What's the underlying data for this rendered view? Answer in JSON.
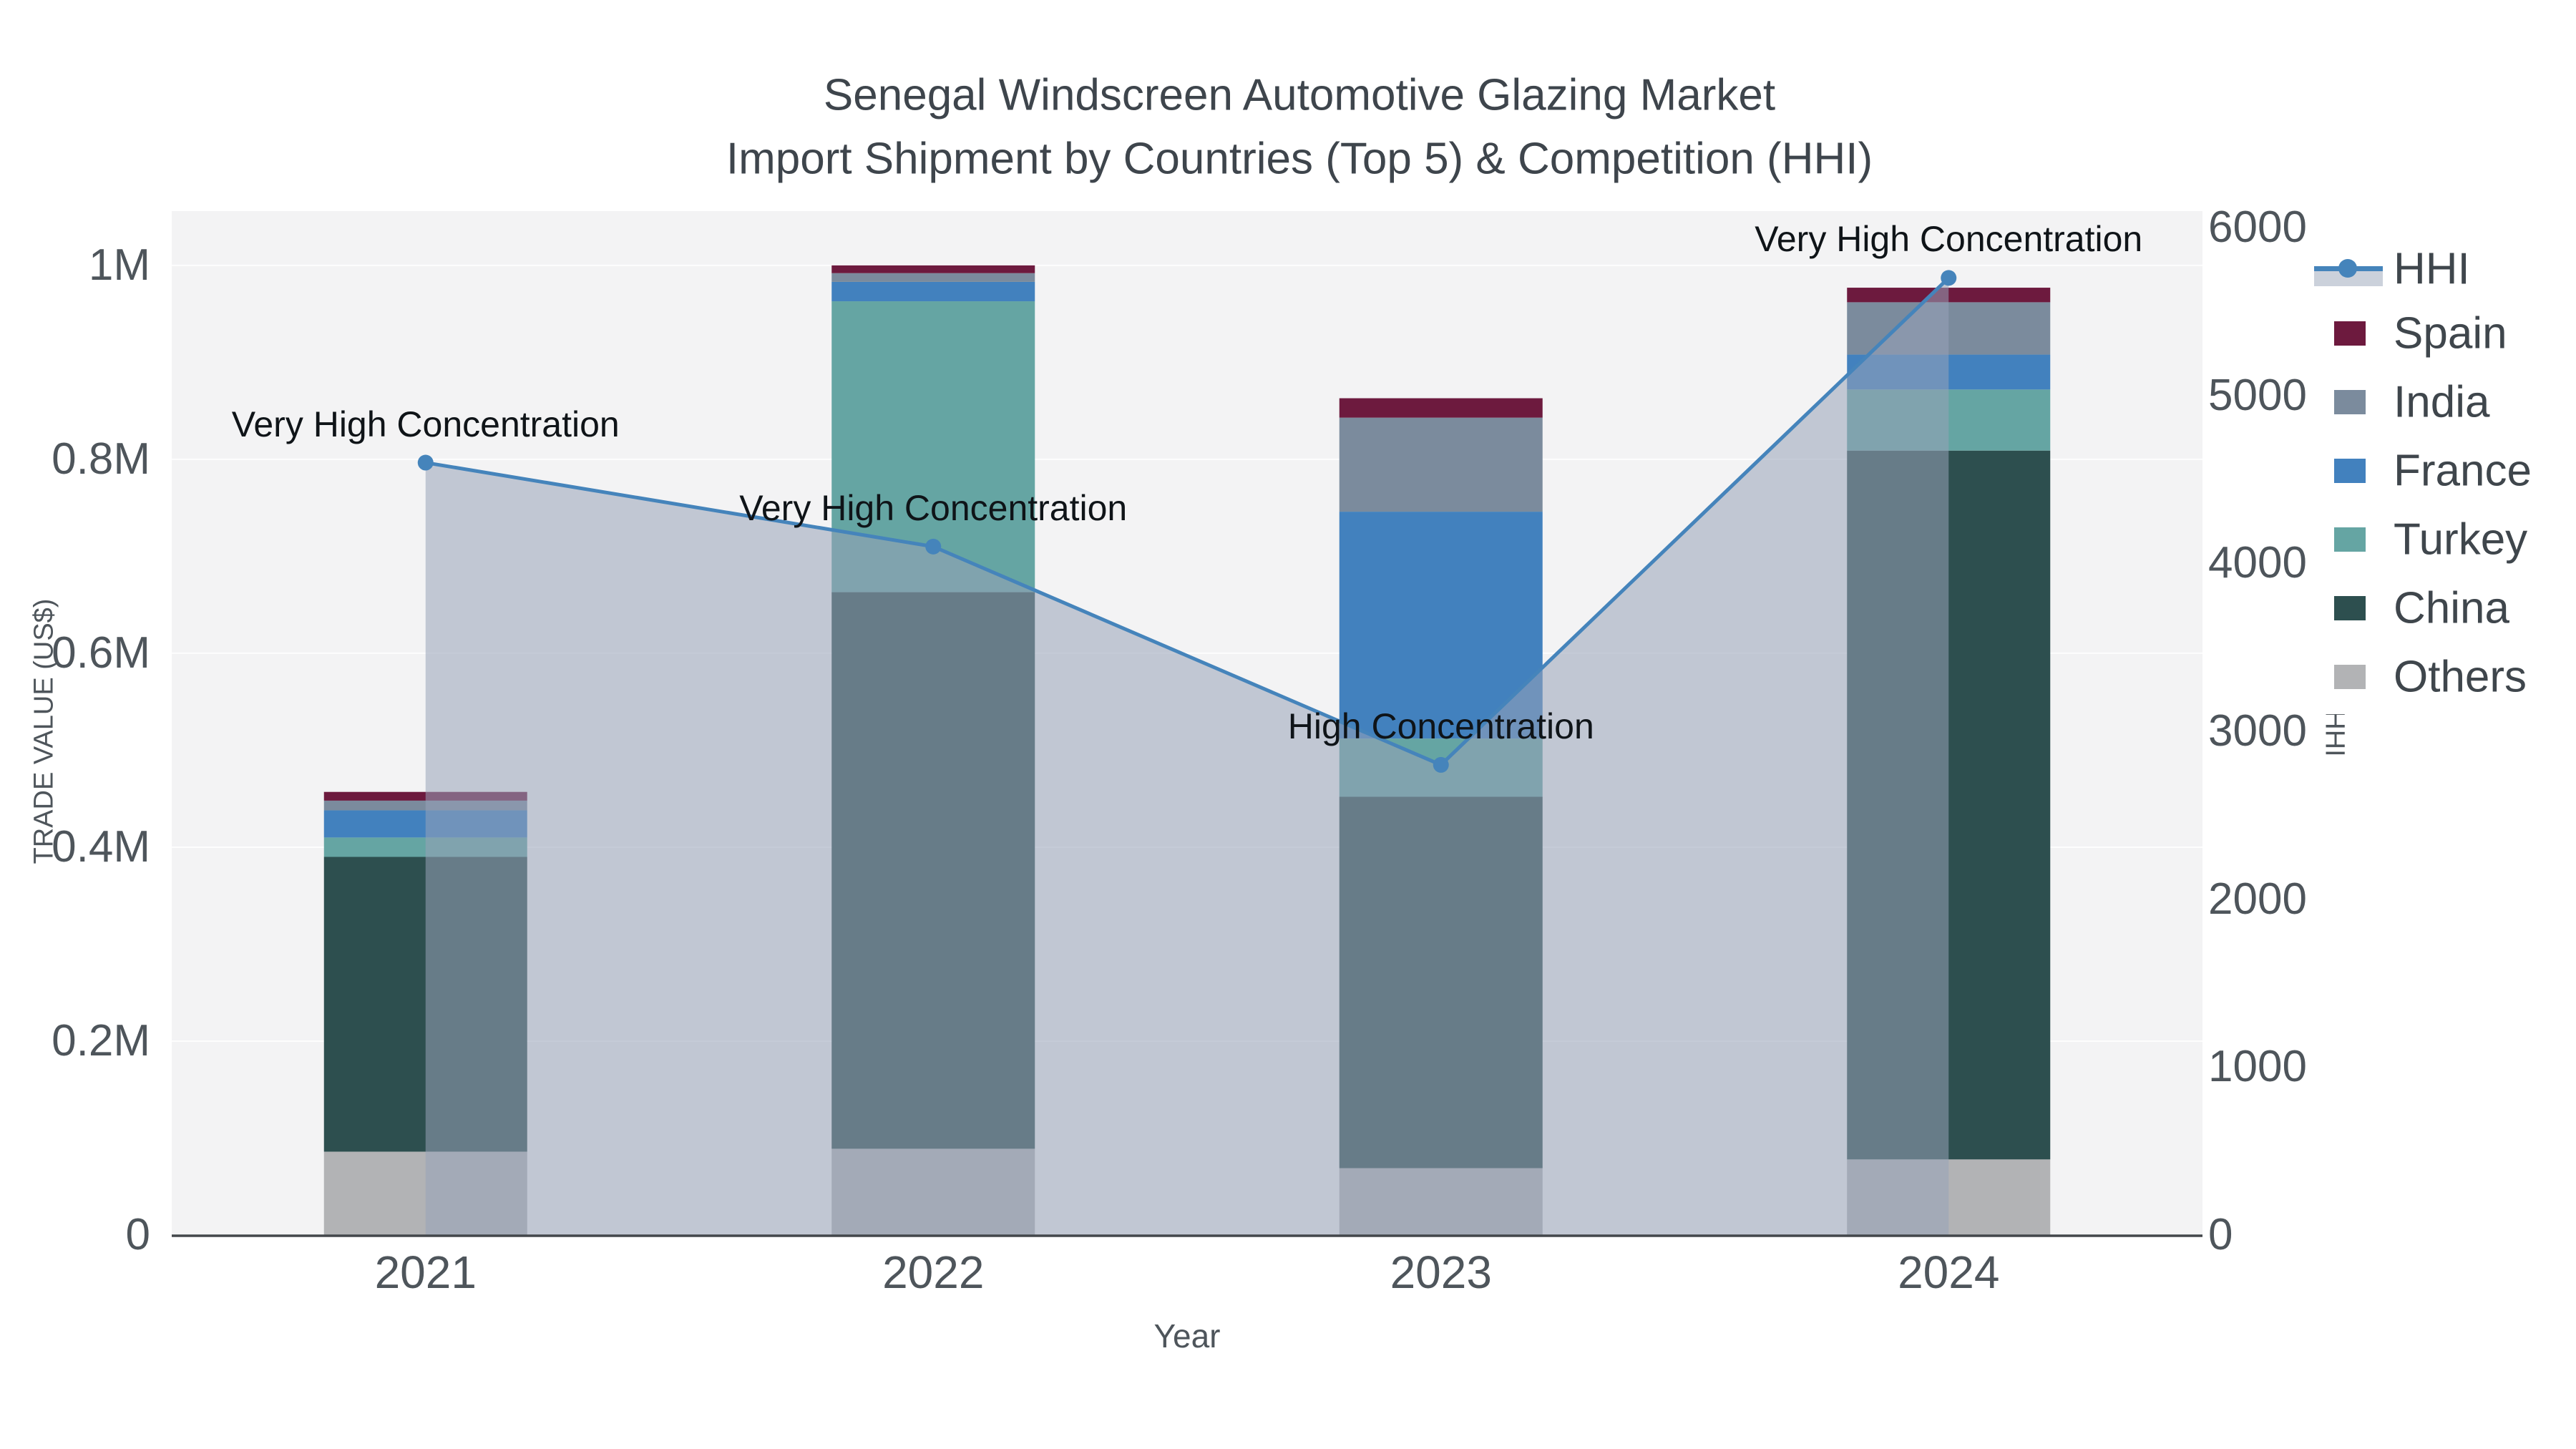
{
  "title": {
    "line1": "Senegal Windscreen Automotive Glazing Market",
    "line2": "Import Shipment by Countries (Top 5) & Competition (HHI)"
  },
  "axes": {
    "x_title": "Year",
    "y_left_title": "TRADE VALUE (US$)",
    "y_right_title": "HHI",
    "y_left_ticks": [
      {
        "label": "0",
        "value": 0
      },
      {
        "label": "0.2M",
        "value": 200000
      },
      {
        "label": "0.4M",
        "value": 400000
      },
      {
        "label": "0.6M",
        "value": 600000
      },
      {
        "label": "0.8M",
        "value": 800000
      },
      {
        "label": "1M",
        "value": 1000000
      }
    ],
    "y_right_ticks": [
      {
        "label": "0",
        "value": 0
      },
      {
        "label": "1000",
        "value": 1000
      },
      {
        "label": "2000",
        "value": 2000
      },
      {
        "label": "3000",
        "value": 3000
      },
      {
        "label": "4000",
        "value": 4000
      },
      {
        "label": "5000",
        "value": 5000
      },
      {
        "label": "6000",
        "value": 6000
      }
    ]
  },
  "chart_data": {
    "type": "combo-stacked-bar-line",
    "title": "Senegal Windscreen Automotive Glazing Market Import Shipment by Countries (Top 5) & Competition (HHI)",
    "xlabel": "Year",
    "ylabel_left": "TRADE VALUE (US$)",
    "ylabel_right": "HHI",
    "categories": [
      "2021",
      "2022",
      "2023",
      "2024"
    ],
    "ylim_left": [
      0,
      1056000
    ],
    "ylim_right": [
      0,
      6098
    ],
    "grid": "horizontal-only",
    "legend_position": "right",
    "bar_series": [
      {
        "name": "Others",
        "color": "#B2B3B5",
        "values": [
          86000,
          89000,
          69000,
          78000
        ]
      },
      {
        "name": "China",
        "color": "#2D4F4F",
        "values": [
          304000,
          574000,
          383000,
          731000
        ]
      },
      {
        "name": "Turkey",
        "color": "#65A5A3",
        "values": [
          20000,
          300000,
          60000,
          63000
        ]
      },
      {
        "name": "France",
        "color": "#4281BE",
        "values": [
          28000,
          20000,
          234000,
          36000
        ]
      },
      {
        "name": "India",
        "color": "#7B8B9D",
        "values": [
          10000,
          9000,
          97000,
          54000
        ]
      },
      {
        "name": "Spain",
        "color": "#6D1A3E",
        "values": [
          9000,
          8000,
          20000,
          15000
        ]
      }
    ],
    "line_series": {
      "name": "HHI",
      "axis": "right",
      "color": "#4584BB",
      "area_fill_color": "rgba(152,163,184,0.55)",
      "values": [
        4600,
        4100,
        2800,
        5700
      ]
    },
    "annotations": [
      {
        "category": "2021",
        "text": "Very High Concentration"
      },
      {
        "category": "2022",
        "text": "Very High Concentration"
      },
      {
        "category": "2023",
        "text": "High Concentration"
      },
      {
        "category": "2024",
        "text": "Very High Concentration"
      }
    ],
    "legend": [
      "HHI",
      "Spain",
      "India",
      "France",
      "Turkey",
      "China",
      "Others"
    ]
  },
  "colors": {
    "plot_bg": "#F3F3F4",
    "grid": "#FFFFFF",
    "axis_line": "#43474B",
    "tick_text": "#4E555B",
    "title_text": "#3E454C",
    "annotation_text": "#0F1418",
    "legend_bg": "#FFFFFF",
    "legend_text": "#3F464C",
    "hhi_fill_swatch": "#CBD1DB"
  }
}
